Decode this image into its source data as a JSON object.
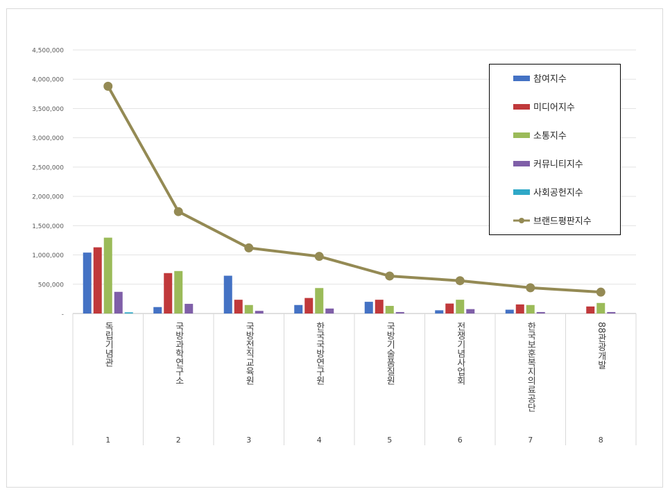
{
  "chart_data": {
    "type": "bar",
    "categories": [
      "1",
      "2",
      "3",
      "4",
      "5",
      "6",
      "7",
      "8"
    ],
    "category_names": [
      "독립기념관",
      "국방과학연구소",
      "국방전직교육원",
      "한국국방연구원",
      "국방기술품질원",
      "전쟁기념사업회",
      "한국보훈복지의료공단",
      "88관광개발"
    ],
    "y_ticks": [
      "-",
      "500,000",
      "1,000,000",
      "1,500,000",
      "2,000,000",
      "2,500,000",
      "3,000,000",
      "3,500,000",
      "4,000,000",
      "4,500,000"
    ],
    "ylim": [
      0,
      4500000
    ],
    "grid": true,
    "legend_position": "right",
    "series": [
      {
        "name": "참여지수",
        "kind": "bar",
        "color": "#4472C4",
        "values": [
          1040000,
          110000,
          645000,
          145000,
          200000,
          55000,
          65000,
          0
        ]
      },
      {
        "name": "미디어지수",
        "kind": "bar",
        "color": "#C0393B",
        "values": [
          1130000,
          690000,
          235000,
          265000,
          235000,
          170000,
          155000,
          120000
        ]
      },
      {
        "name": "소통지수",
        "kind": "bar",
        "color": "#9BBB59",
        "values": [
          1295000,
          725000,
          145000,
          435000,
          130000,
          235000,
          145000,
          180000
        ]
      },
      {
        "name": "커뮤니티지수",
        "kind": "bar",
        "color": "#7F5FA8",
        "values": [
          370000,
          165000,
          45000,
          85000,
          25000,
          75000,
          25000,
          25000
        ]
      },
      {
        "name": "사회공헌지수",
        "kind": "bar",
        "color": "#2FA8C7",
        "values": [
          20000,
          0,
          0,
          0,
          0,
          0,
          0,
          0
        ]
      },
      {
        "name": "브랜드평판지수",
        "kind": "line",
        "color": "#948A54",
        "values": [
          3880000,
          1740000,
          1120000,
          975000,
          640000,
          560000,
          440000,
          365000
        ]
      }
    ]
  }
}
